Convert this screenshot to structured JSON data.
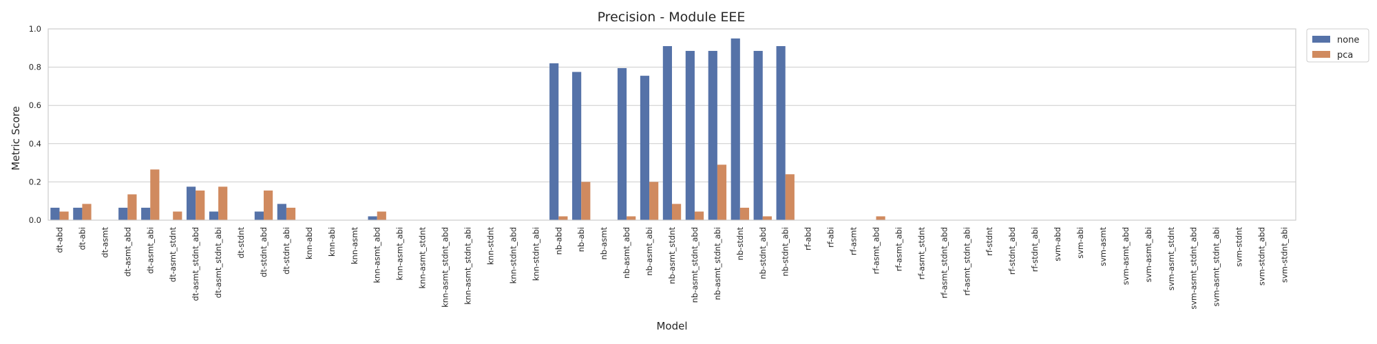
{
  "chart_data": {
    "type": "bar",
    "title": "Precision - Module EEE",
    "xlabel": "Model",
    "ylabel": "Metric Score",
    "ylim": [
      0,
      1.0
    ],
    "yticks": [
      "0.0",
      "0.2",
      "0.4",
      "0.6",
      "0.8",
      "1.0"
    ],
    "grid": true,
    "legend_position": "outside-top-right",
    "categories": [
      "dt-abd",
      "dt-abi",
      "dt-asmt",
      "dt-asmt_abd",
      "dt-asmt_abi",
      "dt-asmt_stdnt",
      "dt-asmt_stdnt_abd",
      "dt-asmt_stdnt_abi",
      "dt-stdnt",
      "dt-stdnt_abd",
      "dt-stdnt_abi",
      "knn-abd",
      "knn-abi",
      "knn-asmt",
      "knn-asmt_abd",
      "knn-asmt_abi",
      "knn-asmt_stdnt",
      "knn-asmt_stdnt_abd",
      "knn-asmt_stdnt_abi",
      "knn-stdnt",
      "knn-stdnt_abd",
      "knn-stdnt_abi",
      "nb-abd",
      "nb-abi",
      "nb-asmt",
      "nb-asmt_abd",
      "nb-asmt_abi",
      "nb-asmt_stdnt",
      "nb-asmt_stdnt_abd",
      "nb-asmt_stdnt_abi",
      "nb-stdnt",
      "nb-stdnt_abd",
      "nb-stdnt_abi",
      "rf-abd",
      "rf-abi",
      "rf-asmt",
      "rf-asmt_abd",
      "rf-asmt_abi",
      "rf-asmt_stdnt",
      "rf-asmt_stdnt_abd",
      "rf-asmt_stdnt_abi",
      "rf-stdnt",
      "rf-stdnt_abd",
      "rf-stdnt_abi",
      "svm-abd",
      "svm-abi",
      "svm-asmt",
      "svm-asmt_abd",
      "svm-asmt_abi",
      "svm-asmt_stdnt",
      "svm-asmt_stdnt_abd",
      "svm-asmt_stdnt_abi",
      "svm-stdnt",
      "svm-stdnt_abd",
      "svm-stdnt_abi"
    ],
    "series": [
      {
        "name": "none",
        "color": "#5572a8",
        "values": [
          0.065,
          0.065,
          0,
          0.065,
          0.065,
          0,
          0.175,
          0.045,
          0,
          0.045,
          0.085,
          0,
          0,
          0,
          0.02,
          0,
          0,
          0,
          0,
          0,
          0,
          0,
          0.82,
          0.775,
          0,
          0.795,
          0.755,
          0.91,
          0.885,
          0.885,
          0.95,
          0.885,
          0.91,
          0,
          0,
          0,
          0,
          0,
          0,
          0,
          0,
          0,
          0,
          0,
          0,
          0,
          0,
          0,
          0,
          0,
          0,
          0,
          0,
          0,
          0
        ]
      },
      {
        "name": "pca",
        "color": "#d08a5f",
        "values": [
          0.045,
          0.085,
          0,
          0.135,
          0.265,
          0.045,
          0.155,
          0.175,
          0,
          0.155,
          0.065,
          0,
          0,
          0,
          0.045,
          0,
          0,
          0,
          0,
          0,
          0,
          0,
          0.02,
          0.2,
          0,
          0.02,
          0.2,
          0.085,
          0.045,
          0.29,
          0.065,
          0.02,
          0.24,
          0,
          0,
          0,
          0.02,
          0,
          0,
          0,
          0,
          0,
          0,
          0,
          0,
          0,
          0,
          0,
          0,
          0,
          0,
          0,
          0,
          0,
          0
        ]
      }
    ]
  }
}
